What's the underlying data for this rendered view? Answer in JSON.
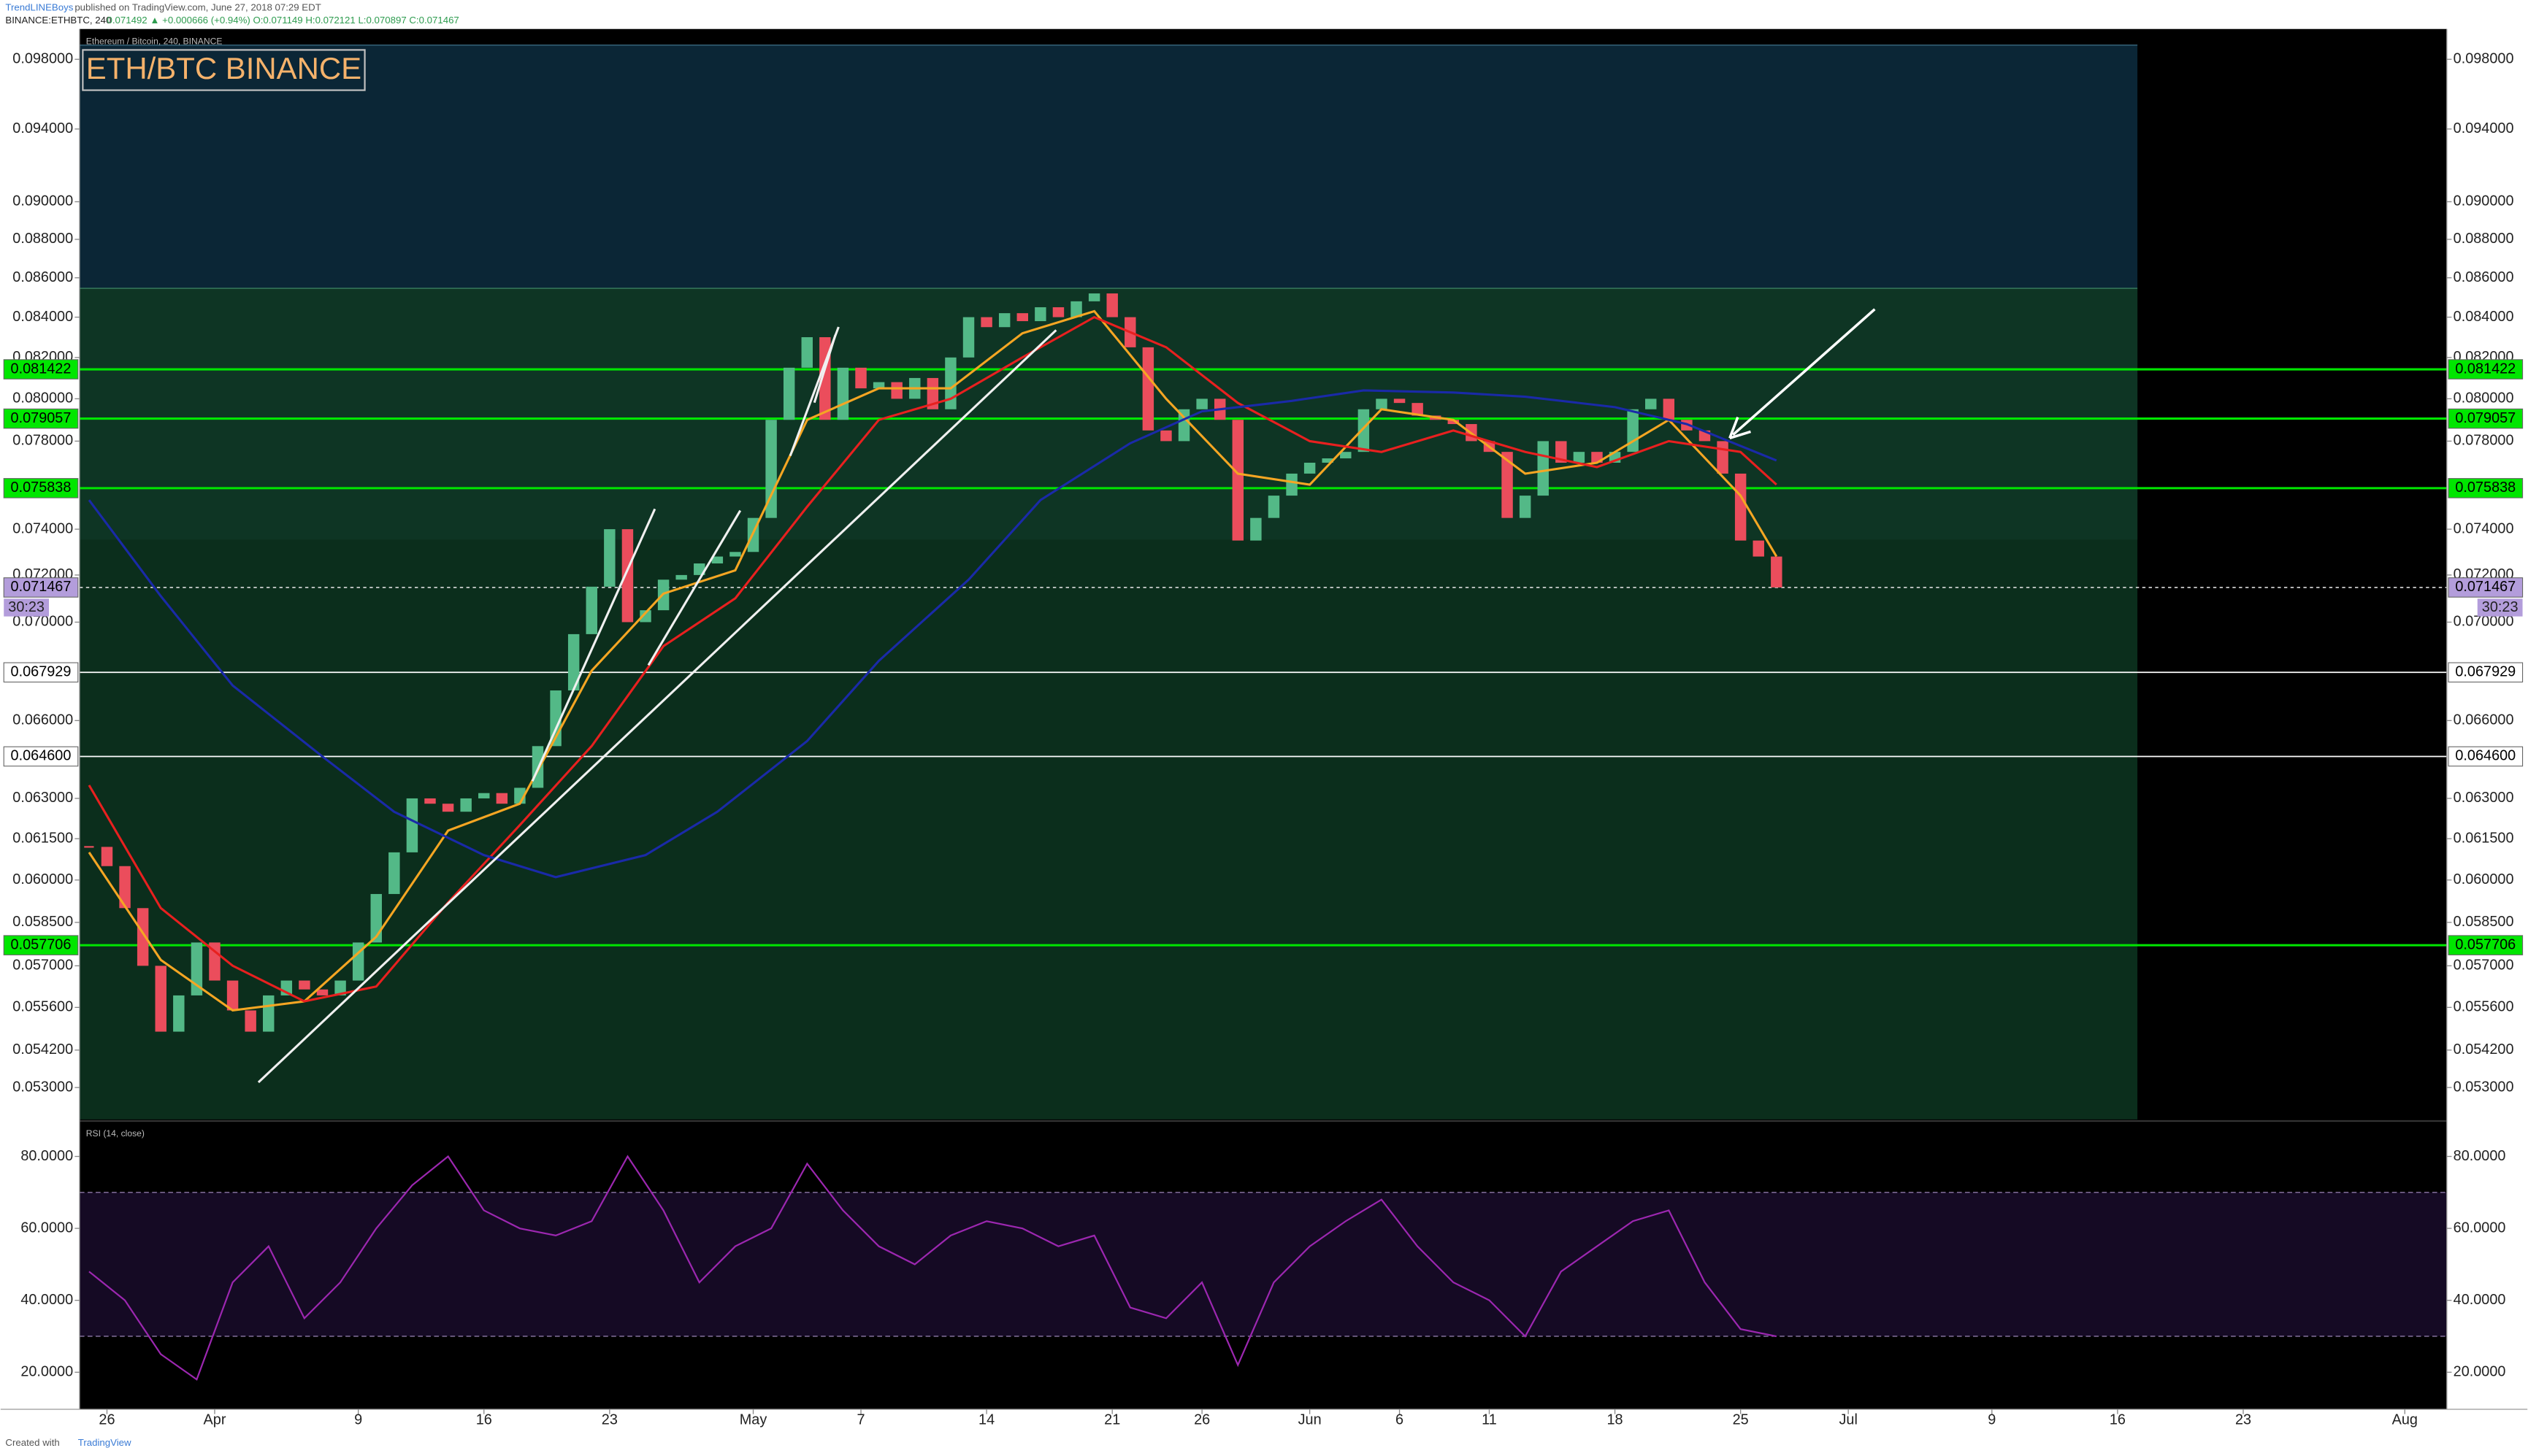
{
  "header": {
    "publisher": "TrendLINEBoys",
    "published": "published on TradingView.com, June 27, 2018 07:29 EDT",
    "symbol": "BINANCE:ETHBTC, 240",
    "quote": "0.071492 ▲ +0.000666 (+0.94%) O:0.071149 H:0.072121 L:0.070897 C:0.071467"
  },
  "footer": {
    "created": "Created with",
    "brand": "TradingView"
  },
  "chart_data": [
    {
      "type": "candlestick",
      "legend": "Ethereum / Bitcoin, 240, BINANCE",
      "title": "ETH/BTC BINANCE",
      "log_scale": true,
      "ylim": [
        0.052,
        0.0996
      ],
      "yticks": [
        {
          "value": 0.098,
          "label": "0.098000"
        },
        {
          "value": 0.094,
          "label": "0.094000"
        },
        {
          "value": 0.09,
          "label": "0.090000"
        },
        {
          "value": 0.088,
          "label": "0.088000"
        },
        {
          "value": 0.086,
          "label": "0.086000"
        },
        {
          "value": 0.084,
          "label": "0.084000"
        },
        {
          "value": 0.082,
          "label": "0.082000"
        },
        {
          "value": 0.08,
          "label": "0.080000"
        },
        {
          "value": 0.078,
          "label": "0.078000"
        },
        {
          "value": 0.074,
          "label": "0.074000"
        },
        {
          "value": 0.072,
          "label": "0.072000"
        },
        {
          "value": 0.07,
          "label": "0.070000"
        },
        {
          "value": 0.066,
          "label": "0.066000"
        },
        {
          "value": 0.063,
          "label": "0.063000"
        },
        {
          "value": 0.0615,
          "label": "0.061500"
        },
        {
          "value": 0.06,
          "label": "0.060000"
        },
        {
          "value": 0.0585,
          "label": "0.058500"
        },
        {
          "value": 0.057,
          "label": "0.057000"
        },
        {
          "value": 0.0556,
          "label": "0.055600"
        },
        {
          "value": 0.0542,
          "label": "0.054200"
        },
        {
          "value": 0.053,
          "label": "0.053000"
        }
      ],
      "xticks": [
        {
          "value": "Mar 26",
          "label": "26"
        },
        {
          "value": "Apr 1",
          "label": "Apr"
        },
        {
          "value": "Apr 9",
          "label": "9"
        },
        {
          "value": "Apr 16",
          "label": "16"
        },
        {
          "value": "Apr 23",
          "label": "23"
        },
        {
          "value": "May 1",
          "label": "May"
        },
        {
          "value": "May 7",
          "label": "7"
        },
        {
          "value": "May 14",
          "label": "14"
        },
        {
          "value": "May 21",
          "label": "21"
        },
        {
          "value": "May 26",
          "label": "26"
        },
        {
          "value": "Jun 1",
          "label": "Jun"
        },
        {
          "value": "Jun 6",
          "label": "6"
        },
        {
          "value": "Jun 11",
          "label": "11"
        },
        {
          "value": "Jun 18",
          "label": "18"
        },
        {
          "value": "Jun 25",
          "label": "25"
        },
        {
          "value": "Jul 1",
          "label": "Jul"
        },
        {
          "value": "Jul 9",
          "label": "9"
        },
        {
          "value": "Jul 16",
          "label": "16"
        },
        {
          "value": "Jul 23",
          "label": "23"
        },
        {
          "value": "Aug 1",
          "label": "Aug"
        }
      ],
      "x": [
        "Mar 25",
        "Mar 26",
        "Mar 27",
        "Mar 28",
        "Mar 29",
        "Mar 30",
        "Mar 31",
        "Apr 1",
        "Apr 2",
        "Apr 3",
        "Apr 4",
        "Apr 5",
        "Apr 6",
        "Apr 7",
        "Apr 8",
        "Apr 9",
        "Apr 10",
        "Apr 11",
        "Apr 12",
        "Apr 13",
        "Apr 14",
        "Apr 15",
        "Apr 16",
        "Apr 17",
        "Apr 18",
        "Apr 19",
        "Apr 20",
        "Apr 21",
        "Apr 22",
        "Apr 23",
        "Apr 24",
        "Apr 25",
        "Apr 26",
        "Apr 27",
        "Apr 28",
        "Apr 29",
        "Apr 30",
        "May 1",
        "May 2",
        "May 3",
        "May 4",
        "May 5",
        "May 6",
        "May 7",
        "May 8",
        "May 9",
        "May 10",
        "May 11",
        "May 12",
        "May 13",
        "May 14",
        "May 15",
        "May 16",
        "May 17",
        "May 18",
        "May 19",
        "May 20",
        "May 21",
        "May 22",
        "May 23",
        "May 24",
        "May 25",
        "May 26",
        "May 27",
        "May 28",
        "May 29",
        "May 30",
        "May 31",
        "Jun 1",
        "Jun 2",
        "Jun 3",
        "Jun 4",
        "Jun 5",
        "Jun 6",
        "Jun 7",
        "Jun 8",
        "Jun 9",
        "Jun 10",
        "Jun 11",
        "Jun 12",
        "Jun 13",
        "Jun 14",
        "Jun 15",
        "Jun 16",
        "Jun 17",
        "Jun 18",
        "Jun 19",
        "Jun 20",
        "Jun 21",
        "Jun 22",
        "Jun 23",
        "Jun 24",
        "Jun 25",
        "Jun 26",
        "Jun 27"
      ],
      "close": [
        0.0612,
        0.0605,
        0.059,
        0.057,
        0.0548,
        0.056,
        0.0578,
        0.0565,
        0.0555,
        0.0548,
        0.056,
        0.0565,
        0.0562,
        0.056,
        0.0565,
        0.0578,
        0.0595,
        0.061,
        0.063,
        0.0628,
        0.0625,
        0.063,
        0.0632,
        0.0628,
        0.0634,
        0.065,
        0.0672,
        0.0695,
        0.0715,
        0.074,
        0.07,
        0.0705,
        0.0718,
        0.072,
        0.0725,
        0.0728,
        0.073,
        0.0745,
        0.079,
        0.0815,
        0.083,
        0.079,
        0.0815,
        0.0805,
        0.0808,
        0.08,
        0.081,
        0.0795,
        0.082,
        0.084,
        0.0835,
        0.0842,
        0.0838,
        0.0845,
        0.084,
        0.0848,
        0.0852,
        0.084,
        0.0825,
        0.0785,
        0.078,
        0.0795,
        0.08,
        0.079,
        0.0735,
        0.0745,
        0.0755,
        0.0765,
        0.077,
        0.0772,
        0.0775,
        0.0795,
        0.08,
        0.0798,
        0.0792,
        0.079,
        0.0788,
        0.078,
        0.0775,
        0.0745,
        0.0755,
        0.078,
        0.077,
        0.0775,
        0.077,
        0.0775,
        0.0795,
        0.08,
        0.079,
        0.0785,
        0.078,
        0.0765,
        0.0735,
        0.0728,
        0.071467
      ],
      "up_color": "#53b987",
      "down_color": "#eb4d5c",
      "series": [
        {
          "color": "#f5a623",
          "x": [
            "Mar 25",
            "Mar 29",
            "Apr 2",
            "Apr 6",
            "Apr 10",
            "Apr 14",
            "Apr 18",
            "Apr 22",
            "Apr 26",
            "Apr 30",
            "May 4",
            "May 8",
            "May 12",
            "May 16",
            "May 20",
            "May 24",
            "May 28",
            "Jun 1",
            "Jun 5",
            "Jun 9",
            "Jun 13",
            "Jun 17",
            "Jun 21",
            "Jun 25",
            "Jun 27"
          ],
          "values": [
            0.061,
            0.0572,
            0.0555,
            0.0558,
            0.058,
            0.0618,
            0.0628,
            0.068,
            0.0712,
            0.0722,
            0.079,
            0.0805,
            0.0805,
            0.0832,
            0.0843,
            0.08,
            0.0765,
            0.076,
            0.0795,
            0.079,
            0.0765,
            0.077,
            0.079,
            0.0755,
            0.0728
          ]
        },
        {
          "color": "#e8201f",
          "x": [
            "Mar 25",
            "Mar 29",
            "Apr 2",
            "Apr 6",
            "Apr 10",
            "Apr 14",
            "Apr 18",
            "Apr 22",
            "Apr 26",
            "Apr 30",
            "May 4",
            "May 8",
            "May 12",
            "May 16",
            "May 20",
            "May 24",
            "May 28",
            "Jun 1",
            "Jun 5",
            "Jun 9",
            "Jun 13",
            "Jun 17",
            "Jun 21",
            "Jun 25",
            "Jun 27"
          ],
          "values": [
            0.0635,
            0.059,
            0.057,
            0.0558,
            0.0563,
            0.0592,
            0.062,
            0.065,
            0.069,
            0.071,
            0.075,
            0.079,
            0.08,
            0.082,
            0.084,
            0.0825,
            0.0798,
            0.078,
            0.0775,
            0.0785,
            0.0775,
            0.0768,
            0.078,
            0.0775,
            0.076
          ]
        },
        {
          "color": "#1a2aa8",
          "x": [
            "Mar 25",
            "Mar 29",
            "Apr 2",
            "Apr 7",
            "Apr 11",
            "Apr 16",
            "Apr 20",
            "Apr 25",
            "Apr 29",
            "May 4",
            "May 8",
            "May 13",
            "May 17",
            "May 22",
            "May 26",
            "May 31",
            "Jun 4",
            "Jun 9",
            "Jun 13",
            "Jun 18",
            "Jun 22",
            "Jun 27"
          ],
          "values": [
            0.0753,
            0.0711,
            0.0674,
            0.0646,
            0.0625,
            0.0609,
            0.0601,
            0.0609,
            0.0625,
            0.0652,
            0.0684,
            0.0718,
            0.0753,
            0.0779,
            0.0794,
            0.0799,
            0.0804,
            0.0803,
            0.0801,
            0.0796,
            0.0788,
            0.0771
          ]
        }
      ],
      "levels": [
        {
          "value": 0.081422,
          "label": "0.081422",
          "color": "#00e600"
        },
        {
          "value": 0.079057,
          "label": "0.079057",
          "color": "#00e600"
        },
        {
          "value": 0.075838,
          "label": "0.075838",
          "color": "#00e600"
        },
        {
          "value": 0.067929,
          "label": "0.067929",
          "color": "#ffffff"
        },
        {
          "value": 0.0646,
          "label": "0.064600",
          "color": "#ffffff"
        },
        {
          "value": 0.057706,
          "label": "0.057706",
          "color": "#00e600"
        }
      ],
      "last": {
        "value": 0.071467,
        "label": "0.071467",
        "countdown": "30:23",
        "color": "#b39ddb"
      }
    },
    {
      "type": "line",
      "title": "RSI (14, close)",
      "ylim": [
        10.6,
        89.4
      ],
      "yticks": [
        {
          "value": 80,
          "label": "80.0000"
        },
        {
          "value": 60,
          "label": "60.0000"
        },
        {
          "value": 40,
          "label": "40.0000"
        },
        {
          "value": 20,
          "label": "20.0000"
        }
      ],
      "band": [
        30,
        70
      ],
      "color": "#9c27b0",
      "x": [
        "Mar 25",
        "Mar 27",
        "Mar 29",
        "Mar 31",
        "Apr 2",
        "Apr 4",
        "Apr 6",
        "Apr 8",
        "Apr 10",
        "Apr 12",
        "Apr 14",
        "Apr 16",
        "Apr 18",
        "Apr 20",
        "Apr 22",
        "Apr 24",
        "Apr 26",
        "Apr 28",
        "Apr 30",
        "May 2",
        "May 4",
        "May 6",
        "May 8",
        "May 10",
        "May 12",
        "May 14",
        "May 16",
        "May 18",
        "May 20",
        "May 22",
        "May 24",
        "May 26",
        "May 28",
        "May 30",
        "Jun 1",
        "Jun 3",
        "Jun 5",
        "Jun 7",
        "Jun 9",
        "Jun 11",
        "Jun 13",
        "Jun 15",
        "Jun 17",
        "Jun 19",
        "Jun 21",
        "Jun 23",
        "Jun 25",
        "Jun 27"
      ],
      "values": [
        48,
        40,
        25,
        18,
        45,
        55,
        35,
        45,
        60,
        72,
        80,
        65,
        60,
        58,
        62,
        80,
        65,
        45,
        55,
        60,
        78,
        65,
        55,
        50,
        58,
        62,
        60,
        55,
        58,
        38,
        35,
        45,
        22,
        45,
        55,
        62,
        68,
        55,
        45,
        40,
        30,
        48,
        55,
        62,
        65,
        45,
        32,
        30
      ]
    }
  ]
}
